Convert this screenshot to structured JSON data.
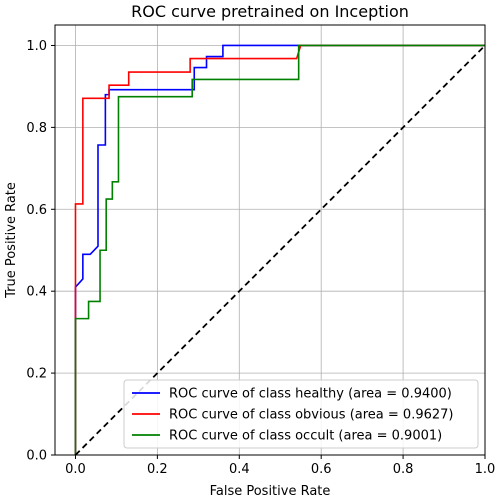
{
  "chart_data": {
    "type": "line",
    "title": "ROC curve pretrained on Inception",
    "xlabel": "False Positive Rate",
    "ylabel": "True Positive Rate",
    "xlim": [
      -0.05,
      1.0
    ],
    "ylim": [
      0.0,
      1.05
    ],
    "xticks": [
      "0.0",
      "0.2",
      "0.4",
      "0.6",
      "0.8",
      "1.0"
    ],
    "yticks": [
      "0.0",
      "0.2",
      "0.4",
      "0.6",
      "0.8",
      "1.0"
    ],
    "grid": true,
    "legend_position": "lower-right",
    "series": [
      {
        "name": "ROC curve of class healthy (area = 0.9400)",
        "color": "#0000ff",
        "x": [
          0.0,
          0.0,
          0.018,
          0.018,
          0.036,
          0.036,
          0.055,
          0.055,
          0.073,
          0.073,
          0.082,
          0.082,
          0.29,
          0.29,
          0.32,
          0.32,
          0.36,
          0.36,
          0.55,
          1.0
        ],
        "y": [
          0.0,
          0.41,
          0.43,
          0.49,
          0.49,
          0.49,
          0.51,
          0.757,
          0.757,
          0.88,
          0.88,
          0.892,
          0.892,
          0.946,
          0.946,
          0.973,
          0.973,
          1.0,
          1.0,
          1.0
        ]
      },
      {
        "name": "ROC curve of class obvious (area = 0.9627)",
        "color": "#ff0000",
        "x": [
          0.0,
          0.0,
          0.018,
          0.018,
          0.082,
          0.082,
          0.13,
          0.13,
          0.28,
          0.28,
          0.54,
          0.55,
          1.0
        ],
        "y": [
          0.0,
          0.613,
          0.613,
          0.871,
          0.871,
          0.903,
          0.903,
          0.935,
          0.935,
          0.968,
          0.968,
          1.0,
          1.0
        ]
      },
      {
        "name": "ROC curve of class occult (area = 0.9001)",
        "color": "#008000",
        "x": [
          0.0,
          0.0,
          0.032,
          0.032,
          0.06,
          0.06,
          0.075,
          0.075,
          0.09,
          0.09,
          0.105,
          0.105,
          0.285,
          0.285,
          0.545,
          0.545,
          1.0
        ],
        "y": [
          0.0,
          0.333,
          0.333,
          0.375,
          0.375,
          0.5,
          0.5,
          0.625,
          0.625,
          0.667,
          0.667,
          0.875,
          0.875,
          0.917,
          0.917,
          1.0,
          1.0
        ]
      }
    ],
    "reference_line": {
      "x": [
        0.0,
        1.0
      ],
      "y": [
        0.0,
        1.0
      ],
      "color": "#000000",
      "style": "dashed"
    }
  }
}
